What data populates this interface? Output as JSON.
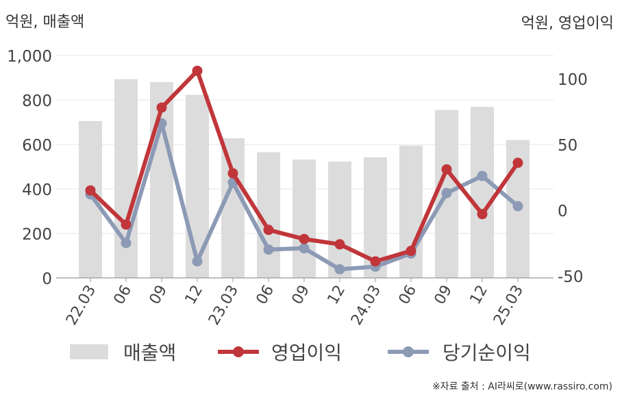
{
  "chart_data": {
    "type": "bar+line",
    "left_unit_label": "억원, 매출액",
    "right_unit_label": "억원, 영업이익",
    "source": "※자료 출처 : AI라씨로(www.rassiro.com)",
    "categories": [
      "22.03",
      "06",
      "09",
      "12",
      "23.03",
      "06",
      "09",
      "12",
      "24.03",
      "06",
      "09",
      "12",
      "25.03"
    ],
    "left_axis": {
      "ylim": [
        0,
        1000
      ],
      "ticks": [
        "0",
        "200",
        "400",
        "600",
        "800",
        "1,000"
      ],
      "tick_values": [
        0,
        200,
        400,
        600,
        800,
        1000
      ]
    },
    "right_axis": {
      "ylim": [
        -50,
        120
      ],
      "ticks": [
        "-50",
        "0",
        "50",
        "100"
      ],
      "tick_values": [
        -50,
        0,
        50,
        100
      ]
    },
    "series": [
      {
        "name": "매출액",
        "kind": "bar",
        "axis": "left",
        "color": "#dcdcdc",
        "values": [
          705,
          893,
          880,
          823,
          628,
          565,
          532,
          523,
          542,
          595,
          755,
          769,
          620
        ]
      },
      {
        "name": "영업이익",
        "kind": "line",
        "axis": "right",
        "color": "#c0363a",
        "values": [
          15,
          -11,
          78,
          106,
          28,
          -15,
          -22,
          -26,
          -39,
          -31,
          31,
          -3,
          36
        ]
      },
      {
        "name": "당기순이익",
        "kind": "line",
        "axis": "right",
        "color": "#8c9ab5",
        "values": [
          12,
          -25,
          66,
          -39,
          21,
          -30,
          -29,
          -45,
          -43,
          -33,
          13,
          26,
          3
        ]
      }
    ],
    "grid": true,
    "legend_position": "bottom"
  }
}
